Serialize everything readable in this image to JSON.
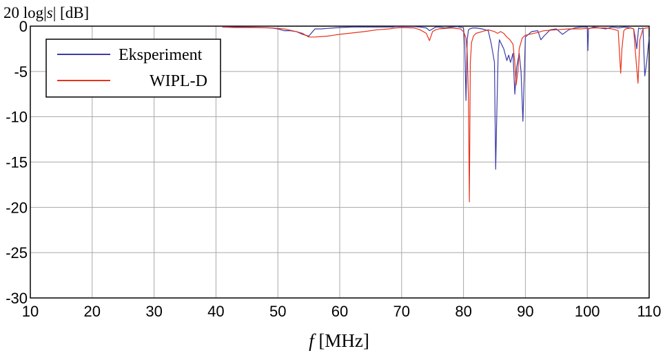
{
  "chart_data": {
    "type": "line",
    "ylabel_parts": [
      "20 log|",
      "s",
      "| [dB]"
    ],
    "xlabel_parts": [
      "f",
      " [MHz]"
    ],
    "xlim": [
      10,
      110
    ],
    "ylim": [
      -30,
      0
    ],
    "xticks": [
      "10",
      "20",
      "30",
      "40",
      "50",
      "60",
      "70",
      "80",
      "90",
      "100",
      "110"
    ],
    "yticks": [
      "0",
      "-5",
      "-10",
      "-15",
      "-20",
      "-25",
      "-30"
    ],
    "xtick_values": [
      10,
      20,
      30,
      40,
      50,
      60,
      70,
      80,
      90,
      100,
      110
    ],
    "ytick_values": [
      0,
      -5,
      -10,
      -15,
      -20,
      -25,
      -30
    ],
    "grid": true,
    "legend_position": "top-left",
    "series": [
      {
        "name": "Eksperiment",
        "color": "#3a3aa8",
        "x": [
          41,
          45,
          49,
          50,
          51,
          52,
          53,
          54,
          55,
          55.5,
          56,
          57,
          58,
          59,
          60,
          62,
          65,
          67,
          68.5,
          69,
          70,
          72,
          73,
          74,
          74.5,
          75,
          75.5,
          76,
          77,
          78,
          79,
          80,
          80.2,
          80.4,
          80.6,
          80.8,
          81,
          81.5,
          82,
          83,
          84,
          84.5,
          85,
          85.2,
          85.4,
          85.6,
          85.8,
          86,
          86.5,
          87,
          87.3,
          87.6,
          88,
          88.3,
          88.6,
          89,
          89.3,
          89.6,
          90,
          91,
          92,
          92.5,
          93,
          94,
          95,
          96,
          97,
          98,
          99,
          100,
          100.1,
          100.2,
          101,
          102,
          103,
          104,
          105,
          106,
          107,
          107.5,
          107.8,
          108,
          108.3,
          108.6,
          109,
          109.3,
          109.6,
          110
        ],
        "y": [
          -0.05,
          -0.1,
          -0.2,
          -0.3,
          -0.5,
          -0.5,
          -0.6,
          -0.9,
          -1.1,
          -0.7,
          -0.3,
          -0.3,
          -0.25,
          -0.2,
          -0.15,
          -0.1,
          -0.1,
          -0.1,
          -0.1,
          -0.05,
          -0.05,
          -0.05,
          -0.1,
          -0.2,
          -0.5,
          -0.3,
          -0.1,
          -0.1,
          -0.2,
          -0.1,
          -0.05,
          -0.2,
          -2,
          -8.2,
          -1.5,
          -0.4,
          -0.3,
          -0.2,
          -0.2,
          -0.3,
          -0.5,
          -2,
          -4,
          -15.8,
          -9,
          -3,
          -1.5,
          -1.8,
          -2.5,
          -3.8,
          -3.2,
          -4,
          -3,
          -7.5,
          -4.5,
          -3,
          -5,
          -10.5,
          -1.2,
          -0.6,
          -0.5,
          -1.5,
          -1.1,
          -0.4,
          -0.3,
          -0.9,
          -0.4,
          -0.2,
          -0.1,
          -0.1,
          -2.7,
          -0.3,
          -0.1,
          -0.2,
          -0.3,
          -0.1,
          -0.2,
          -0.1,
          -0.2,
          -0.3,
          -1.4,
          -2.5,
          -0.2,
          -0.3,
          -0.2,
          -5.5,
          -4,
          -1.2
        ]
      },
      {
        "name": "WIPL-D",
        "color": "#e8301a",
        "x": [
          41,
          43,
          46,
          49,
          50,
          51,
          52,
          53,
          54,
          55,
          56,
          57,
          58,
          59,
          60,
          62,
          64,
          66,
          68,
          69,
          70,
          72,
          73,
          74,
          74.5,
          75,
          75.5,
          76,
          78,
          79.5,
          80,
          80.4,
          80.6,
          80.8,
          80.95,
          81.1,
          81.3,
          81.6,
          82,
          83,
          84,
          84.5,
          85,
          85.5,
          86,
          86.5,
          87,
          87.5,
          88,
          88.3,
          88.5,
          88.8,
          89,
          89.5,
          90,
          92,
          93,
          95,
          97,
          99,
          100,
          101,
          102,
          103,
          104,
          105,
          105.4,
          105.6,
          105.9,
          106.2,
          107,
          107.5,
          107.8,
          108.2,
          108.5,
          109,
          109.5,
          110
        ],
        "y": [
          -0.1,
          -0.15,
          -0.15,
          -0.2,
          -0.25,
          -0.3,
          -0.45,
          -0.6,
          -0.8,
          -1.2,
          -1.2,
          -1.15,
          -1.1,
          -1.0,
          -0.9,
          -0.75,
          -0.6,
          -0.4,
          -0.3,
          -0.2,
          -0.15,
          -0.2,
          -0.4,
          -0.8,
          -1.6,
          -0.6,
          -0.4,
          -0.3,
          -0.2,
          -0.3,
          -0.6,
          -1.3,
          -3,
          -8,
          -19.4,
          -4,
          -1.8,
          -1.1,
          -0.8,
          -0.6,
          -0.4,
          -0.5,
          -0.6,
          -0.8,
          -0.6,
          -0.8,
          -1.2,
          -1.5,
          -2,
          -4,
          -6.5,
          -5,
          -2.5,
          -1.3,
          -1,
          -0.7,
          -0.5,
          -0.4,
          -0.3,
          -0.3,
          -0.25,
          -0.2,
          -0.2,
          -0.2,
          -0.3,
          -0.5,
          -5.2,
          -2.5,
          -0.5,
          -0.3,
          -0.2,
          -0.3,
          -3,
          -6.3,
          -1.5,
          -0.3,
          -0.2,
          -0.2
        ]
      }
    ]
  }
}
